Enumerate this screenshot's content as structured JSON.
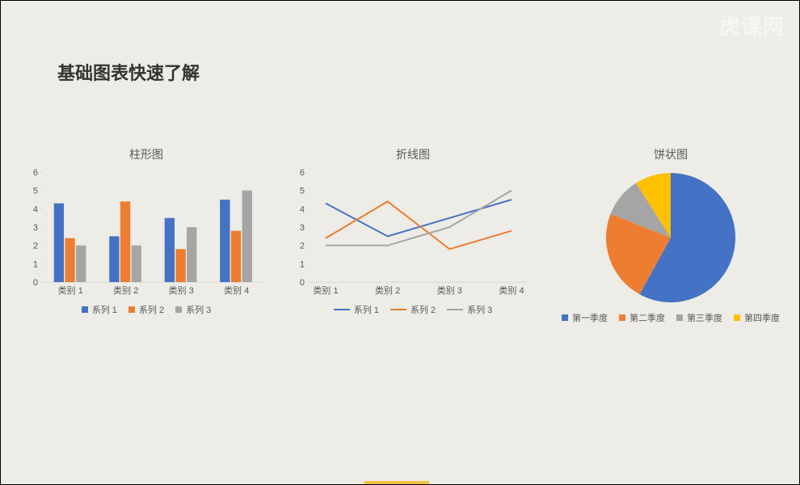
{
  "page": {
    "title": "基础图表快速了解",
    "watermark": "虎课网",
    "background_color": "#edece6"
  },
  "palette": {
    "series1": "#4472c4",
    "series2": "#ed7d31",
    "series3": "#a5a5a5",
    "series4": "#ffc000",
    "axis_text": "#595959",
    "axis_line": "#d9d9d9",
    "grid_line": "#d9d9d9"
  },
  "bar_chart": {
    "type": "bar",
    "title": "柱形图",
    "categories": [
      "类别 1",
      "类别 2",
      "类别 3",
      "类别 4"
    ],
    "series": [
      {
        "name": "系列 1",
        "color": "#4472c4",
        "values": [
          4.3,
          2.5,
          3.5,
          4.5
        ]
      },
      {
        "name": "系列 2",
        "color": "#ed7d31",
        "values": [
          2.4,
          4.4,
          1.8,
          2.8
        ]
      },
      {
        "name": "系列 3",
        "color": "#a5a5a5",
        "values": [
          2.0,
          2.0,
          3.0,
          5.0
        ]
      }
    ],
    "ylim": [
      0,
      6
    ],
    "ytick_step": 1,
    "bar_width": 0.2,
    "background_color": "#edece6",
    "grid": false,
    "label_fontsize": 11
  },
  "line_chart": {
    "type": "line",
    "title": "折线图",
    "categories": [
      "类别 1",
      "类别 2",
      "类别 3",
      "类别 4"
    ],
    "series": [
      {
        "name": "系列 1",
        "color": "#4472c4",
        "values": [
          4.3,
          2.5,
          3.5,
          4.5
        ],
        "line_width": 2
      },
      {
        "name": "系列 2",
        "color": "#ed7d31",
        "values": [
          2.4,
          4.4,
          1.8,
          2.8
        ],
        "line_width": 2
      },
      {
        "name": "系列 3",
        "color": "#a5a5a5",
        "values": [
          2.0,
          2.0,
          3.0,
          5.0
        ],
        "line_width": 2
      }
    ],
    "ylim": [
      0,
      6
    ],
    "ytick_step": 1,
    "background_color": "#edece6",
    "grid": false,
    "label_fontsize": 11
  },
  "pie_chart": {
    "type": "pie",
    "title": "饼状图",
    "slices": [
      {
        "name": "第一季度",
        "color": "#4472c4",
        "value": 58
      },
      {
        "name": "第二季度",
        "color": "#ed7d31",
        "value": 23
      },
      {
        "name": "第三季度",
        "color": "#a5a5a5",
        "value": 10
      },
      {
        "name": "第四季度",
        "color": "#ffc000",
        "value": 9
      }
    ],
    "start_angle_deg": -90,
    "direction": "clockwise",
    "background_color": "#edece6",
    "label_fontsize": 11
  }
}
